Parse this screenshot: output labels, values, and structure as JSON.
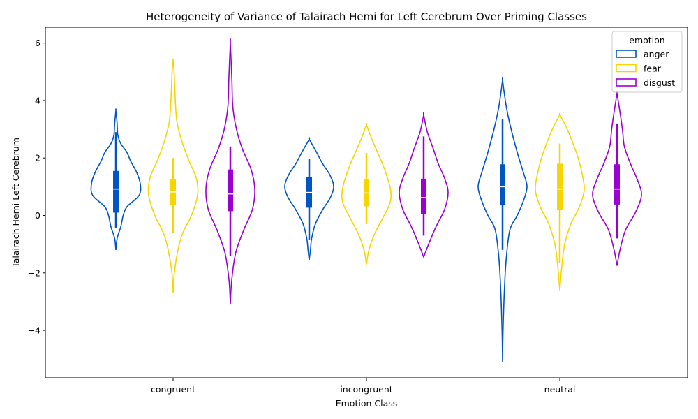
{
  "chart_data": {
    "type": "violin",
    "title": "Heterogeneity of Variance of Talairach Hemi for Left Cerebrum Over Priming Classes",
    "xlabel": "Emotion Class",
    "ylabel": "Talairach Hemi Left Cerebrum",
    "categories": [
      "congruent",
      "incongruent",
      "neutral"
    ],
    "ylim": [
      -5.65,
      6.55
    ],
    "yticks": [
      -4,
      -2,
      0,
      2,
      4,
      6
    ],
    "yticklabels": [
      "−4",
      "−2",
      "0",
      "2",
      "4",
      "6"
    ],
    "legend": {
      "title": "emotion",
      "position": "top-right"
    },
    "series": [
      {
        "name": "anger",
        "color": "#0055c4",
        "violins": [
          {
            "min": -1.2,
            "max": 3.65,
            "q1": 0.1,
            "median": 0.92,
            "q3": 1.55,
            "whisker_low": -0.45,
            "whisker_high": 2.9,
            "profile": [
              [
                -1.2,
                0.0
              ],
              [
                -0.8,
                0.05
              ],
              [
                -0.4,
                0.2
              ],
              [
                0.0,
                0.3
              ],
              [
                0.3,
                0.45
              ],
              [
                0.7,
                0.95
              ],
              [
                1.1,
                1.0
              ],
              [
                1.5,
                0.85
              ],
              [
                1.9,
                0.6
              ],
              [
                2.2,
                0.45
              ],
              [
                2.5,
                0.2
              ],
              [
                2.8,
                0.08
              ],
              [
                3.2,
                0.05
              ],
              [
                3.65,
                0.0
              ]
            ]
          },
          {
            "min": -1.55,
            "max": 2.65,
            "q1": 0.27,
            "median": 0.8,
            "q3": 1.35,
            "whisker_low": -0.85,
            "whisker_high": 1.98,
            "profile": [
              [
                -1.55,
                0.0
              ],
              [
                -1.2,
                0.05
              ],
              [
                -0.8,
                0.1
              ],
              [
                -0.3,
                0.25
              ],
              [
                0.2,
                0.55
              ],
              [
                0.6,
                0.85
              ],
              [
                1.0,
                1.0
              ],
              [
                1.4,
                0.85
              ],
              [
                1.8,
                0.55
              ],
              [
                2.2,
                0.3
              ],
              [
                2.65,
                0.0
              ]
            ]
          },
          {
            "min": -5.1,
            "max": 4.7,
            "q1": 0.35,
            "median": 1.0,
            "q3": 1.78,
            "whisker_low": -1.2,
            "whisker_high": 3.35,
            "profile": [
              [
                -5.1,
                0.0
              ],
              [
                -4.0,
                0.02
              ],
              [
                -2.5,
                0.08
              ],
              [
                -1.5,
                0.15
              ],
              [
                -0.5,
                0.3
              ],
              [
                0.0,
                0.6
              ],
              [
                0.5,
                0.85
              ],
              [
                1.0,
                1.0
              ],
              [
                1.5,
                0.85
              ],
              [
                2.2,
                0.6
              ],
              [
                3.0,
                0.35
              ],
              [
                3.8,
                0.15
              ],
              [
                4.7,
                0.0
              ]
            ]
          }
        ]
      },
      {
        "name": "fear",
        "color": "#f7d600",
        "violins": [
          {
            "min": -2.7,
            "max": 5.4,
            "q1": 0.35,
            "median": 0.82,
            "q3": 1.25,
            "whisker_low": -0.6,
            "whisker_high": 2.0,
            "profile": [
              [
                -2.7,
                0.0
              ],
              [
                -2.0,
                0.05
              ],
              [
                -1.2,
                0.2
              ],
              [
                -0.6,
                0.4
              ],
              [
                0.0,
                0.75
              ],
              [
                0.7,
                1.0
              ],
              [
                1.3,
                0.95
              ],
              [
                1.9,
                0.65
              ],
              [
                2.6,
                0.35
              ],
              [
                3.3,
                0.15
              ],
              [
                4.2,
                0.08
              ],
              [
                5.0,
                0.04
              ],
              [
                5.4,
                0.0
              ]
            ]
          },
          {
            "min": -1.7,
            "max": 3.15,
            "q1": 0.32,
            "median": 0.78,
            "q3": 1.25,
            "whisker_low": -0.3,
            "whisker_high": 2.18,
            "profile": [
              [
                -1.7,
                0.0
              ],
              [
                -1.2,
                0.1
              ],
              [
                -0.7,
                0.3
              ],
              [
                -0.2,
                0.6
              ],
              [
                0.4,
                0.95
              ],
              [
                0.8,
                1.0
              ],
              [
                1.2,
                0.9
              ],
              [
                1.7,
                0.7
              ],
              [
                2.2,
                0.45
              ],
              [
                2.7,
                0.2
              ],
              [
                3.15,
                0.0
              ]
            ]
          },
          {
            "min": -2.6,
            "max": 3.5,
            "q1": 0.2,
            "median": 0.92,
            "q3": 1.8,
            "whisker_low": -1.65,
            "whisker_high": 2.5,
            "profile": [
              [
                -2.6,
                0.0
              ],
              [
                -1.8,
                0.08
              ],
              [
                -1.0,
                0.2
              ],
              [
                -0.3,
                0.45
              ],
              [
                0.3,
                0.8
              ],
              [
                0.9,
                1.0
              ],
              [
                1.5,
                0.9
              ],
              [
                2.0,
                0.75
              ],
              [
                2.6,
                0.5
              ],
              [
                3.1,
                0.25
              ],
              [
                3.5,
                0.0
              ]
            ]
          }
        ]
      },
      {
        "name": "disgust",
        "color": "#9b00d3",
        "violins": [
          {
            "min": -3.1,
            "max": 6.0,
            "q1": 0.15,
            "median": 0.75,
            "q3": 1.6,
            "whisker_low": -1.4,
            "whisker_high": 2.4,
            "profile": [
              [
                -3.1,
                0.0
              ],
              [
                -2.3,
                0.05
              ],
              [
                -1.3,
                0.22
              ],
              [
                -0.5,
                0.55
              ],
              [
                0.2,
                0.9
              ],
              [
                0.9,
                1.0
              ],
              [
                1.6,
                0.85
              ],
              [
                2.3,
                0.5
              ],
              [
                3.0,
                0.25
              ],
              [
                3.8,
                0.1
              ],
              [
                4.8,
                0.06
              ],
              [
                6.0,
                0.0
              ]
            ]
          },
          {
            "min": -1.45,
            "max": 3.5,
            "q1": 0.05,
            "median": 0.62,
            "q3": 1.28,
            "whisker_low": -0.7,
            "whisker_high": 2.75,
            "profile": [
              [
                -1.45,
                0.0
              ],
              [
                -1.0,
                0.2
              ],
              [
                -0.4,
                0.5
              ],
              [
                0.2,
                0.85
              ],
              [
                0.8,
                1.0
              ],
              [
                1.3,
                0.85
              ],
              [
                1.8,
                0.6
              ],
              [
                2.3,
                0.4
              ],
              [
                2.9,
                0.15
              ],
              [
                3.5,
                0.0
              ]
            ]
          },
          {
            "min": -1.75,
            "max": 4.25,
            "q1": 0.38,
            "median": 0.92,
            "q3": 1.78,
            "whisker_low": -0.8,
            "whisker_high": 3.2,
            "profile": [
              [
                -1.75,
                0.0
              ],
              [
                -1.2,
                0.12
              ],
              [
                -0.5,
                0.35
              ],
              [
                0.1,
                0.75
              ],
              [
                0.7,
                1.0
              ],
              [
                1.2,
                0.85
              ],
              [
                1.8,
                0.55
              ],
              [
                2.4,
                0.3
              ],
              [
                3.0,
                0.22
              ],
              [
                3.6,
                0.12
              ],
              [
                4.25,
                0.0
              ]
            ]
          }
        ]
      }
    ]
  }
}
